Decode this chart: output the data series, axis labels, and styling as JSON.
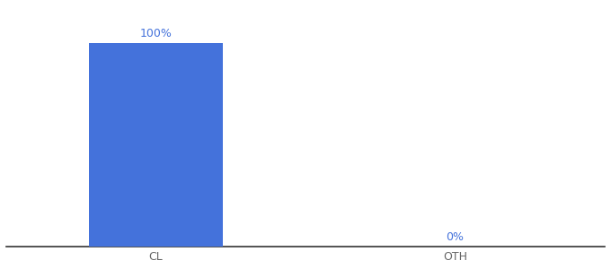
{
  "categories": [
    "CL",
    "OTH"
  ],
  "values": [
    100,
    0
  ],
  "bar_color": "#4472db",
  "label_color": "#4472db",
  "xlabel_color": "#666666",
  "label_fontsize": 9,
  "tick_fontsize": 9,
  "bar_width": 0.45,
  "ylim": [
    0,
    118
  ],
  "xlim": [
    -0.5,
    1.5
  ],
  "background_color": "#ffffff",
  "axis_line_color": "#333333"
}
